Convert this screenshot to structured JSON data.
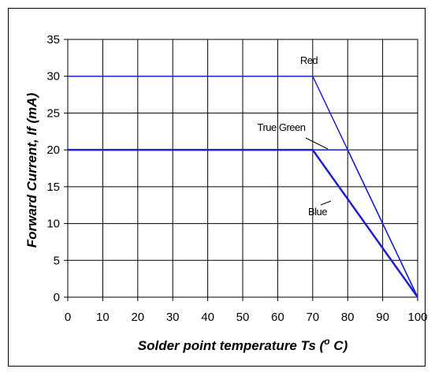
{
  "chart_data": {
    "type": "line",
    "xlabel_main": "Solder point temperature Ts (",
    "xlabel_degree": "o",
    "xlabel_unit": " C)",
    "ylabel": "Forward Current, If (mA)",
    "xlim": [
      0,
      100
    ],
    "ylim": [
      0,
      35
    ],
    "xticks": [
      0,
      10,
      20,
      30,
      40,
      50,
      60,
      70,
      80,
      90,
      100
    ],
    "yticks": [
      0,
      5,
      10,
      15,
      20,
      25,
      30,
      35
    ],
    "grid": true,
    "series": [
      {
        "name": "Red",
        "color": "#1f1fd0",
        "x": [
          0,
          70,
          100
        ],
        "y": [
          30,
          30,
          0
        ]
      },
      {
        "name": "True Green",
        "color": "#1f1fd0",
        "x": [
          0,
          70,
          80,
          100
        ],
        "y": [
          20,
          20,
          20,
          0
        ]
      },
      {
        "name": "Blue",
        "color": "#1f1fd0",
        "x": [
          0,
          70,
          100
        ],
        "y": [
          20,
          20,
          0
        ]
      }
    ]
  }
}
